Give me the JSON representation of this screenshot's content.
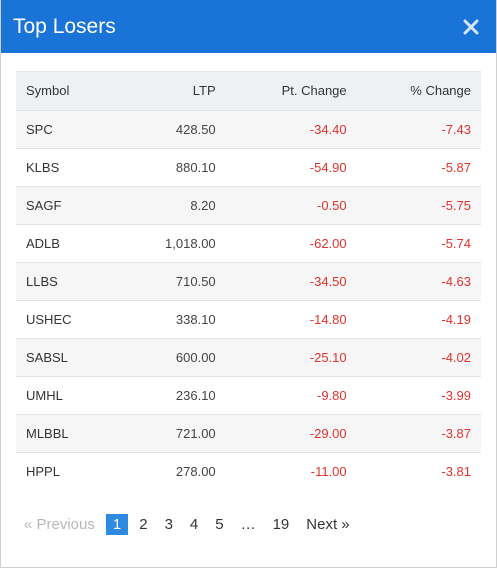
{
  "modal": {
    "title": "Top Losers"
  },
  "table": {
    "headers": {
      "symbol": "Symbol",
      "ltp": "LTP",
      "pt_change": "Pt. Change",
      "pct_change": "% Change"
    },
    "rows": [
      {
        "symbol": "SPC",
        "ltp": "428.50",
        "pt_change": "-34.40",
        "pct_change": "-7.43"
      },
      {
        "symbol": "KLBS",
        "ltp": "880.10",
        "pt_change": "-54.90",
        "pct_change": "-5.87"
      },
      {
        "symbol": "SAGF",
        "ltp": "8.20",
        "pt_change": "-0.50",
        "pct_change": "-5.75"
      },
      {
        "symbol": "ADLB",
        "ltp": "1,018.00",
        "pt_change": "-62.00",
        "pct_change": "-5.74"
      },
      {
        "symbol": "LLBS",
        "ltp": "710.50",
        "pt_change": "-34.50",
        "pct_change": "-4.63"
      },
      {
        "symbol": "USHEC",
        "ltp": "338.10",
        "pt_change": "-14.80",
        "pct_change": "-4.19"
      },
      {
        "symbol": "SABSL",
        "ltp": "600.00",
        "pt_change": "-25.10",
        "pct_change": "-4.02"
      },
      {
        "symbol": "UMHL",
        "ltp": "236.10",
        "pt_change": "-9.80",
        "pct_change": "-3.99"
      },
      {
        "symbol": "MLBBL",
        "ltp": "721.00",
        "pt_change": "-29.00",
        "pct_change": "-3.87"
      },
      {
        "symbol": "HPPL",
        "ltp": "278.00",
        "pt_change": "-11.00",
        "pct_change": "-3.81"
      }
    ]
  },
  "pagination": {
    "previous": "« Previous",
    "pages": [
      "1",
      "2",
      "3",
      "4",
      "5"
    ],
    "ellipsis": "…",
    "last": "19",
    "next": "Next »",
    "active_page": "1"
  },
  "colors": {
    "header": "#1a73d6",
    "negative": "#e0332e",
    "active_page": "#2d8ae0"
  },
  "icons": {
    "close": "close-icon"
  }
}
